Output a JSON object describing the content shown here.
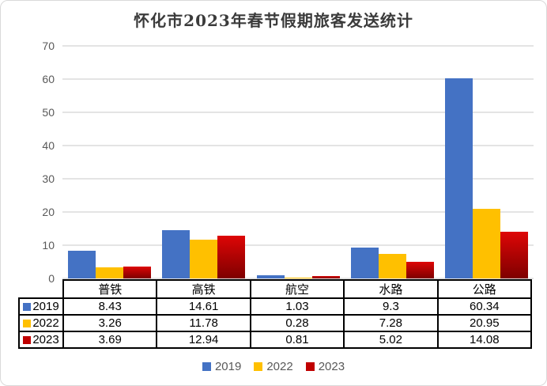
{
  "title": "怀化市2023年春节假期旅客发送统计",
  "colors": {
    "series_2019": "#4472C4",
    "series_2022": "#FFC000",
    "series_2023_legend": "#C00000",
    "series_2023_gradient_top": "#DE0606",
    "series_2023_gradient_bottom": "#7E0000",
    "gridline": "#e4e4e4",
    "axis_text": "#595959",
    "title_text": "#3b3b3b",
    "table_border": "#000000"
  },
  "chart_data": {
    "type": "bar",
    "title": "怀化市2023年春节假期旅客发送统计",
    "categories": [
      "普铁",
      "高铁",
      "航空",
      "水路",
      "公路"
    ],
    "series": [
      {
        "name": "2019",
        "color": "#4472C4",
        "values": [
          8.43,
          14.61,
          1.03,
          9.3,
          60.34
        ]
      },
      {
        "name": "2022",
        "color": "#FFC000",
        "values": [
          3.26,
          11.78,
          0.28,
          7.28,
          20.95
        ]
      },
      {
        "name": "2023",
        "color": "#C00000",
        "gradient": [
          "#DE0606",
          "#7E0000"
        ],
        "values": [
          3.69,
          12.94,
          0.81,
          5.02,
          14.08
        ]
      }
    ],
    "ylim": [
      0,
      70
    ],
    "yticks": [
      0,
      10,
      20,
      30,
      40,
      50,
      60,
      70
    ],
    "grid": true,
    "legend_position": "bottom",
    "data_table_shown": true
  }
}
